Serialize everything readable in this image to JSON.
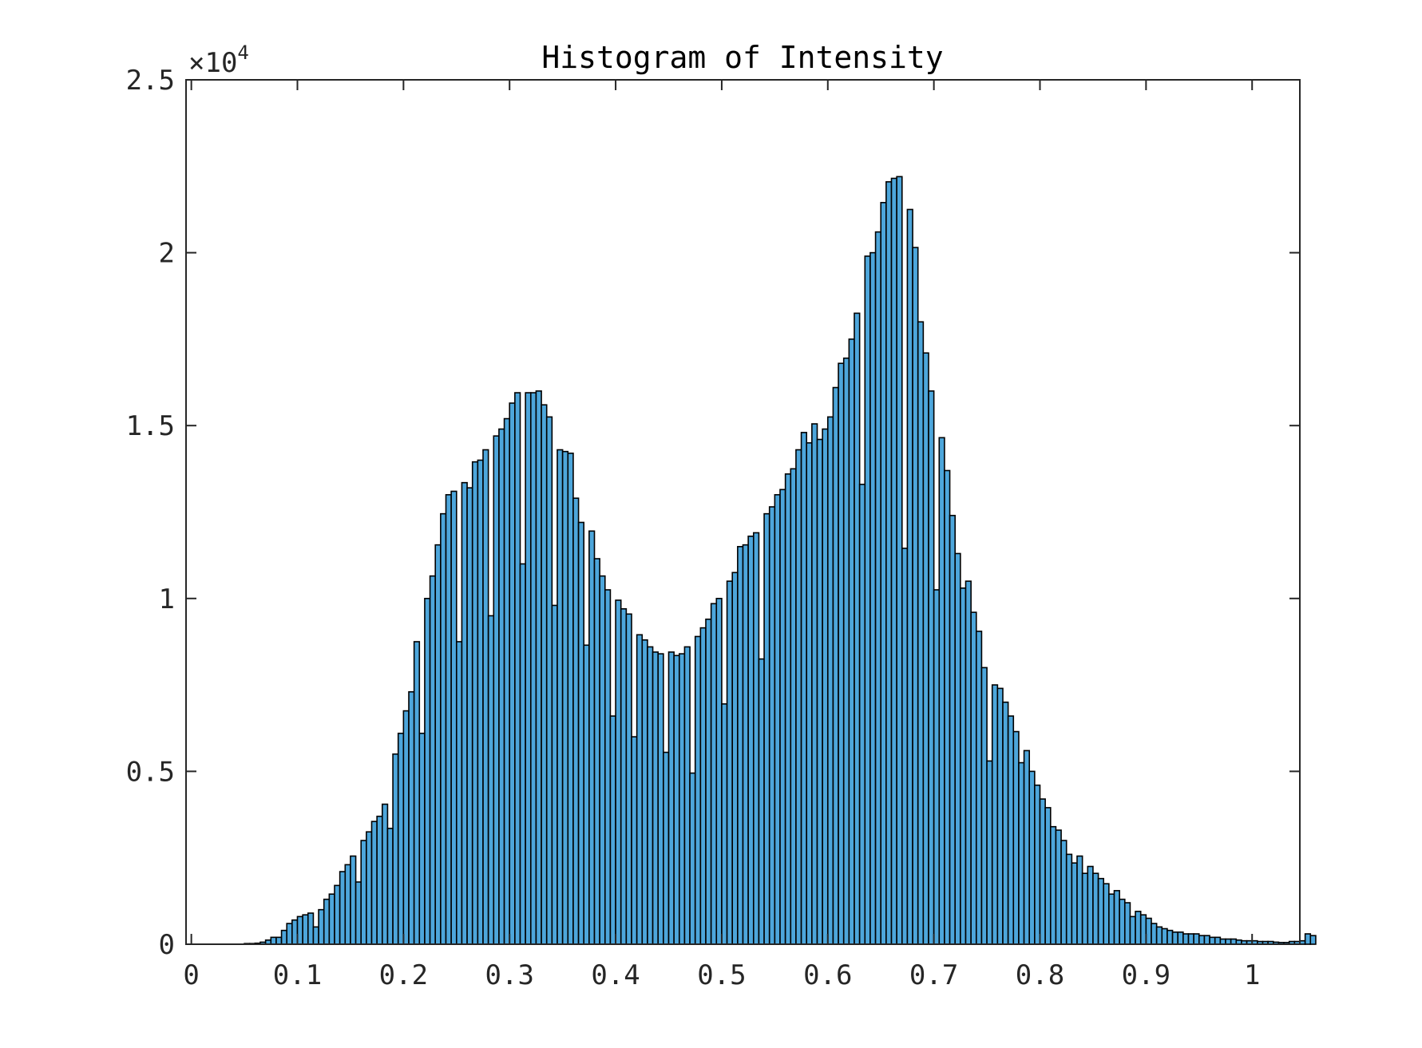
{
  "chart_data": {
    "type": "bar",
    "title": "Histogram of Intensity",
    "xlabel": "",
    "ylabel": "",
    "xlim": [
      -0.005,
      1.045
    ],
    "ylim": [
      0,
      25000
    ],
    "y_exponent": {
      "base": "×10",
      "power": "4"
    },
    "x_ticks": [
      {
        "value": 0,
        "label": "0"
      },
      {
        "value": 0.1,
        "label": "0.1"
      },
      {
        "value": 0.2,
        "label": "0.2"
      },
      {
        "value": 0.3,
        "label": "0.3"
      },
      {
        "value": 0.4,
        "label": "0.4"
      },
      {
        "value": 0.5,
        "label": "0.5"
      },
      {
        "value": 0.6,
        "label": "0.6"
      },
      {
        "value": 0.7,
        "label": "0.7"
      },
      {
        "value": 0.8,
        "label": "0.8"
      },
      {
        "value": 0.9,
        "label": "0.9"
      },
      {
        "value": 1,
        "label": "1"
      }
    ],
    "y_ticks": [
      {
        "value": 0,
        "label": "0"
      },
      {
        "value": 5000,
        "label": "0.5"
      },
      {
        "value": 10000,
        "label": "1"
      },
      {
        "value": 15000,
        "label": "1.5"
      },
      {
        "value": 20000,
        "label": "2"
      },
      {
        "value": 25000,
        "label": "2.5"
      }
    ],
    "grid": false,
    "bar_color": "#4DA6DB",
    "edge_color": "#000000",
    "bin_width": 0.005,
    "x_start": 0.05,
    "values": [
      20,
      20,
      30,
      60,
      120,
      200,
      200,
      400,
      600,
      700,
      800,
      850,
      900,
      500,
      1000,
      1300,
      1450,
      1700,
      2100,
      2300,
      2550,
      1800,
      3000,
      3250,
      3550,
      3700,
      4050,
      3350,
      5500,
      6100,
      6750,
      7300,
      8750,
      6100,
      10000,
      10650,
      11550,
      12450,
      13000,
      13100,
      8750,
      13350,
      13200,
      13950,
      14000,
      14300,
      9500,
      14700,
      14900,
      15200,
      15650,
      15950,
      11000,
      15950,
      15950,
      16000,
      15600,
      15250,
      9800,
      14300,
      14250,
      14200,
      12900,
      12200,
      8650,
      11950,
      11150,
      10650,
      10250,
      6600,
      9950,
      9700,
      9550,
      6000,
      8950,
      8800,
      8600,
      8450,
      8400,
      5550,
      8450,
      8350,
      8400,
      8600,
      4950,
      8900,
      9150,
      9400,
      9850,
      10000,
      6950,
      10500,
      10750,
      11500,
      11550,
      11800,
      11900,
      8250,
      12450,
      12650,
      13000,
      13150,
      13600,
      13750,
      14300,
      14800,
      14500,
      15050,
      14600,
      14900,
      15250,
      16100,
      16800,
      16950,
      17500,
      18250,
      13300,
      19900,
      20000,
      20600,
      21450,
      22050,
      22150,
      22200,
      11450,
      21250,
      20150,
      18000,
      17100,
      16000,
      10250,
      14650,
      13700,
      12400,
      11300,
      10300,
      10500,
      9600,
      9050,
      8000,
      5300,
      7500,
      7400,
      7000,
      6600,
      6150,
      5250,
      5600,
      5000,
      4600,
      4200,
      3950,
      3400,
      3300,
      3000,
      2600,
      2350,
      2550,
      2050,
      2250,
      2050,
      1900,
      1750,
      1450,
      1550,
      1300,
      1200,
      800,
      950,
      850,
      750,
      600,
      500,
      450,
      400,
      350,
      350,
      300,
      300,
      300,
      250,
      250,
      200,
      200,
      150,
      150,
      150,
      120,
      100,
      100,
      100,
      80,
      80,
      80,
      60,
      50,
      50,
      80,
      80,
      100,
      300,
      250
    ]
  }
}
